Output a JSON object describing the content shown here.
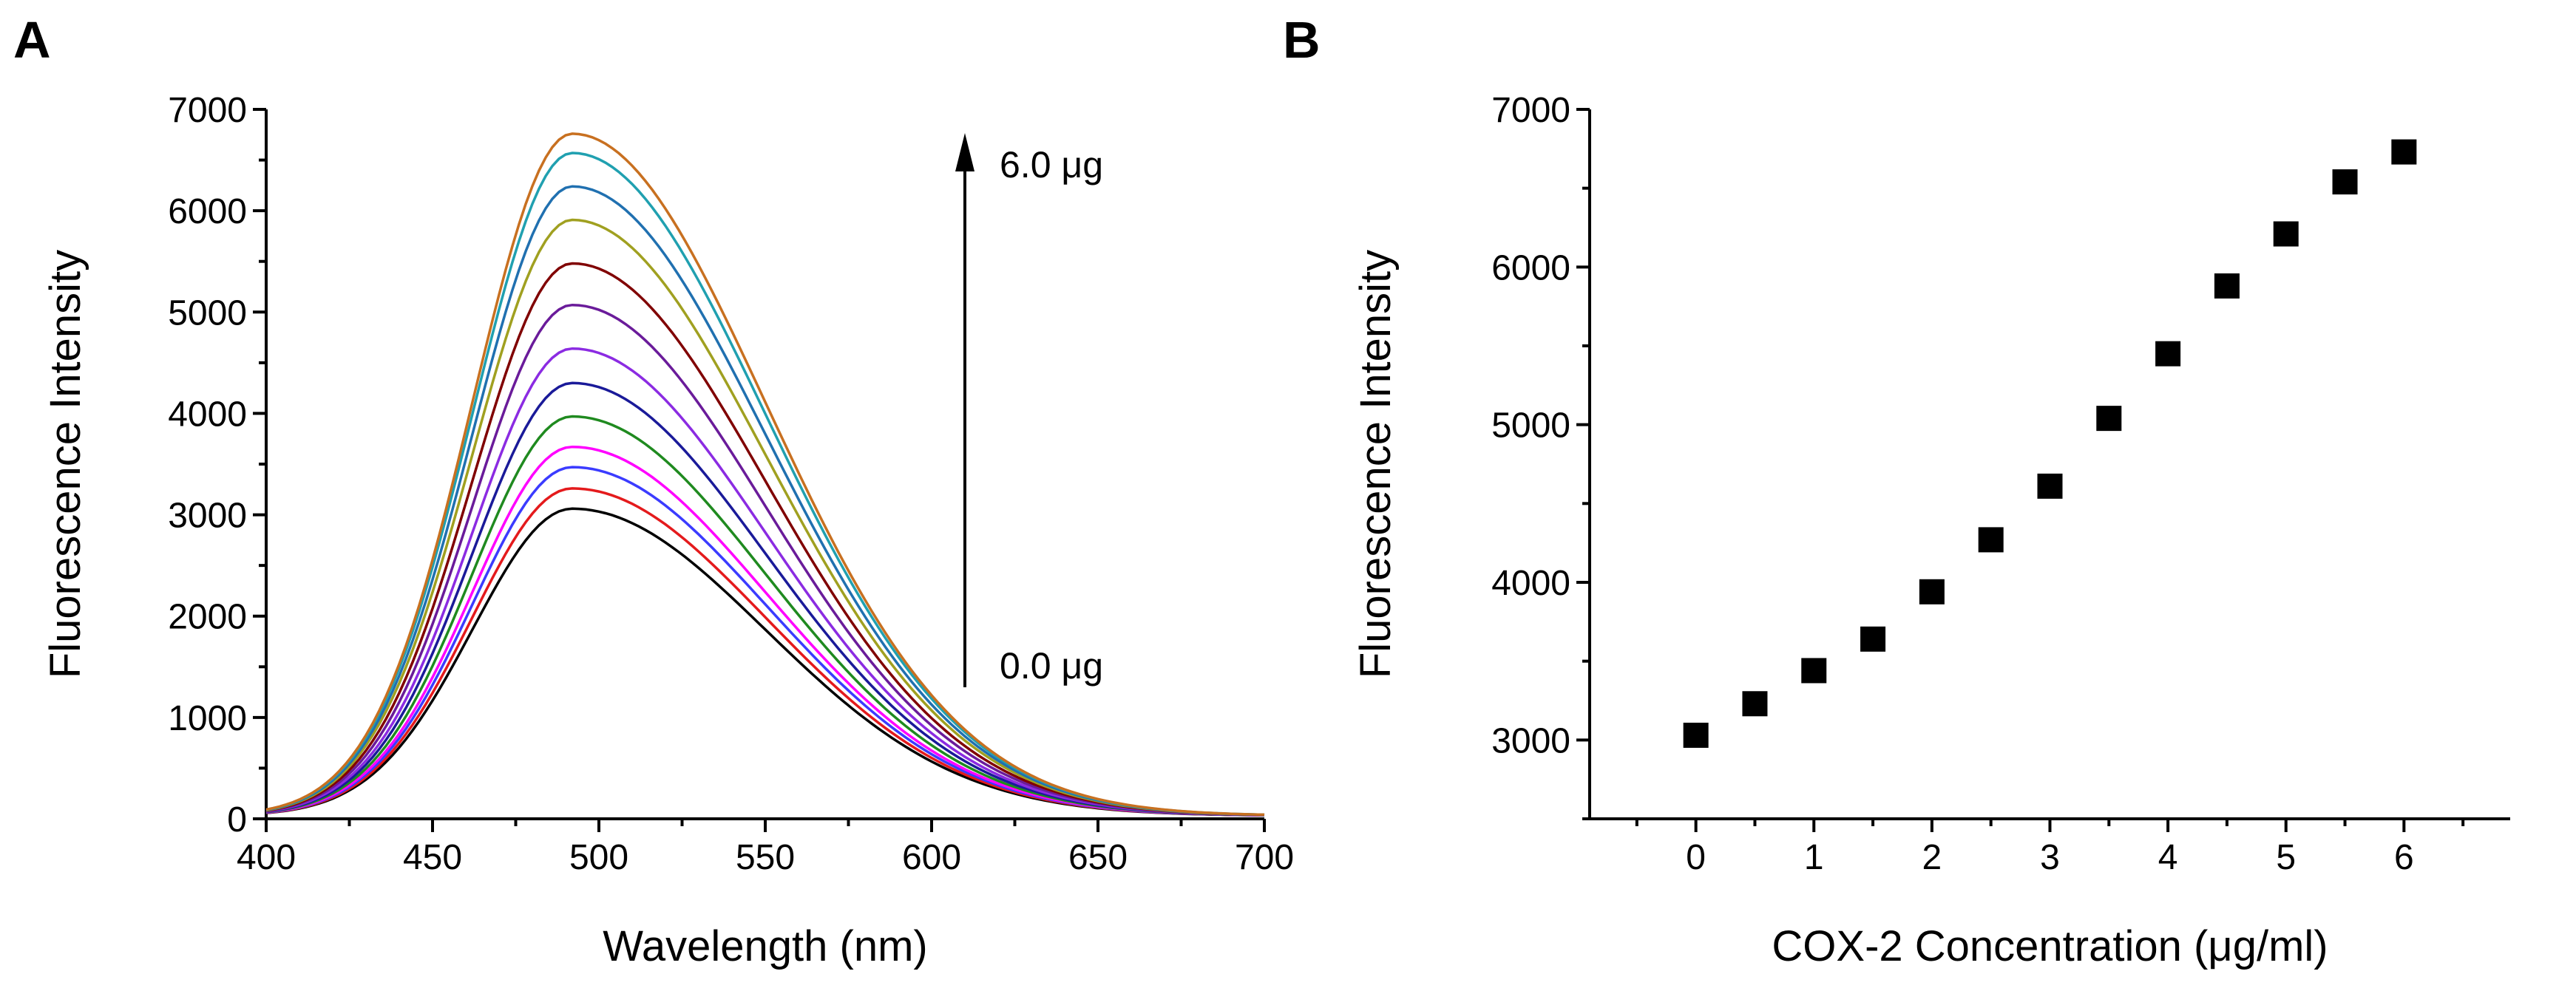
{
  "chart_data": [
    {
      "panel": "A",
      "type": "line",
      "title": "",
      "xlabel": "Wavelength (nm)",
      "ylabel": "Fluorescence Intensity",
      "xlim": [
        400,
        700
      ],
      "ylim": [
        0,
        7000
      ],
      "xticks": [
        400,
        450,
        500,
        550,
        600,
        650,
        700
      ],
      "yticks": [
        0,
        1000,
        2000,
        3000,
        4000,
        5000,
        6000,
        7000
      ],
      "x_minor_ticks": true,
      "y_minor_ticks": true,
      "grid": false,
      "peak_wavelength": 492,
      "series": [
        {
          "peak": 3030,
          "color": "#000000"
        },
        {
          "peak": 3230,
          "color": "#e41a1c"
        },
        {
          "peak": 3440,
          "color": "#3b3bff"
        },
        {
          "peak": 3640,
          "color": "#ff00ff"
        },
        {
          "peak": 3940,
          "color": "#1f8a1f"
        },
        {
          "peak": 4270,
          "color": "#1a1a99"
        },
        {
          "peak": 4610,
          "color": "#8b2be2"
        },
        {
          "peak": 5040,
          "color": "#6a1b9a"
        },
        {
          "peak": 5450,
          "color": "#800000"
        },
        {
          "peak": 5880,
          "color": "#a0a020"
        },
        {
          "peak": 6210,
          "color": "#2070b0"
        },
        {
          "peak": 6540,
          "color": "#20a0b0"
        },
        {
          "peak": 6730,
          "color": "#c87020"
        }
      ],
      "annotations": {
        "top": "6.0 μg",
        "bottom": "0.0 μg",
        "arrow_direction": "up"
      }
    },
    {
      "panel": "B",
      "type": "scatter",
      "title": "",
      "xlabel": "COX-2 Concentration (μg/ml)",
      "ylabel": "Fluorescence Intensity",
      "xlim": [
        -0.9,
        6.9
      ],
      "ylim": [
        2500,
        7000
      ],
      "xticks": [
        0,
        1,
        2,
        3,
        4,
        5,
        6
      ],
      "yticks": [
        3000,
        4000,
        5000,
        6000,
        7000
      ],
      "x_minor_ticks": true,
      "y_minor_ticks": true,
      "grid": false,
      "marker": "square",
      "marker_color": "#000000",
      "x": [
        0,
        0.5,
        1,
        1.5,
        2,
        2.5,
        3,
        3.5,
        4,
        4.5,
        5,
        5.5,
        6
      ],
      "y": [
        3030,
        3230,
        3440,
        3640,
        3940,
        4270,
        4610,
        5040,
        5450,
        5880,
        6210,
        6540,
        6730
      ]
    }
  ]
}
